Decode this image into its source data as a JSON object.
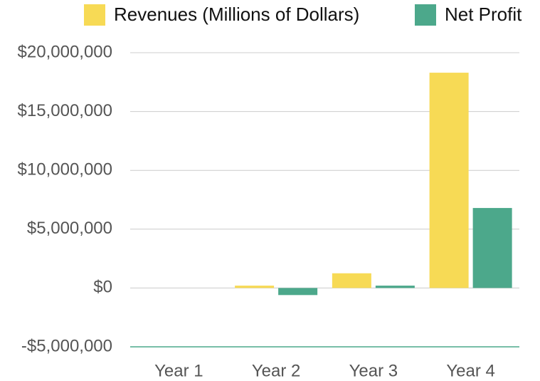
{
  "chart_data": {
    "type": "bar",
    "categories": [
      "Year 1",
      "Year 2",
      "Year 3",
      "Year 4"
    ],
    "series": [
      {
        "name": "Revenues (Millions of Dollars)",
        "color": "#f7da55",
        "values": [
          0,
          200000,
          1250000,
          18300000
        ]
      },
      {
        "name": "Net Profit",
        "color": "#4ca88b",
        "values": [
          0,
          -600000,
          200000,
          6800000
        ]
      }
    ],
    "ylim": [
      -5000000,
      20000000
    ],
    "yticks": [
      {
        "value": -5000000,
        "label": "-$5,000,000"
      },
      {
        "value": 0,
        "label": "$0"
      },
      {
        "value": 5000000,
        "label": "$5,000,000"
      },
      {
        "value": 10000000,
        "label": "$10,000,000"
      },
      {
        "value": 15000000,
        "label": "$15,000,000"
      },
      {
        "value": 20000000,
        "label": "$20,000,000"
      }
    ],
    "grid": true,
    "legend": "top"
  }
}
